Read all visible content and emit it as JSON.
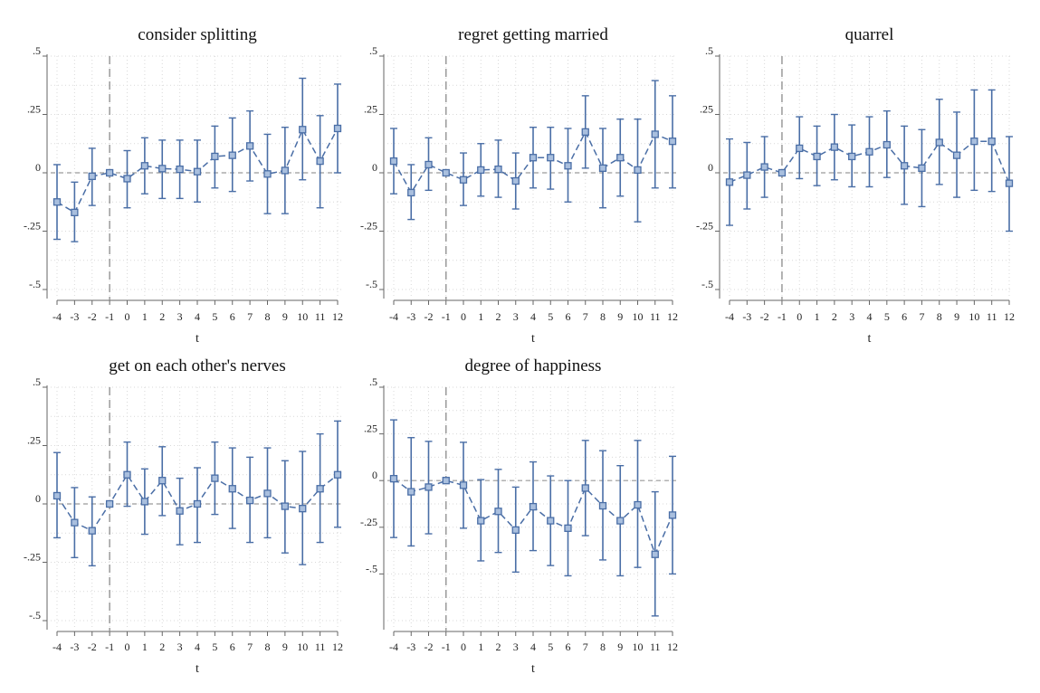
{
  "chart_data": [
    {
      "type": "scatter",
      "title": "consider splitting",
      "xlabel": "t",
      "ylabel": "",
      "x": [
        -4,
        -3,
        -2,
        -1,
        0,
        1,
        2,
        3,
        4,
        5,
        6,
        7,
        8,
        9,
        10,
        11,
        12
      ],
      "y": [
        -0.125,
        -0.17,
        -0.015,
        0,
        -0.025,
        0.03,
        0.018,
        0.015,
        0.005,
        0.07,
        0.075,
        0.115,
        -0.005,
        0.01,
        0.185,
        0.05,
        0.19
      ],
      "ci_low": [
        -0.285,
        -0.295,
        -0.14,
        0,
        -0.15,
        -0.09,
        -0.11,
        -0.11,
        -0.125,
        -0.065,
        -0.08,
        -0.035,
        -0.175,
        -0.175,
        -0.03,
        -0.15,
        0.0
      ],
      "ci_high": [
        0.035,
        -0.04,
        0.105,
        0,
        0.095,
        0.15,
        0.14,
        0.14,
        0.14,
        0.2,
        0.235,
        0.265,
        0.165,
        0.195,
        0.405,
        0.245,
        0.38
      ],
      "ylim": [
        -0.5,
        0.5
      ],
      "yticks": [
        ".5",
        ".25",
        "0",
        "-.25",
        "-.5"
      ],
      "xticks": [
        "-4",
        "-3",
        "-2",
        "-1",
        "0",
        "1",
        "2",
        "3",
        "4",
        "5",
        "6",
        "7",
        "8",
        "9",
        "10",
        "11",
        "12"
      ],
      "reference_x": -1,
      "reference_y": 0
    },
    {
      "type": "scatter",
      "title": "regret getting married",
      "xlabel": "t",
      "ylabel": "",
      "x": [
        -4,
        -3,
        -2,
        -1,
        0,
        1,
        2,
        3,
        4,
        5,
        6,
        7,
        8,
        9,
        10,
        11,
        12
      ],
      "y": [
        0.05,
        -0.085,
        0.035,
        0,
        -0.03,
        0.012,
        0.015,
        -0.035,
        0.065,
        0.065,
        0.03,
        0.175,
        0.02,
        0.065,
        0.012,
        0.165,
        0.135
      ],
      "ci_low": [
        -0.09,
        -0.2,
        -0.075,
        0,
        -0.14,
        -0.1,
        -0.105,
        -0.155,
        -0.065,
        -0.07,
        -0.125,
        0.02,
        -0.15,
        -0.1,
        -0.21,
        -0.065,
        -0.065
      ],
      "ci_high": [
        0.19,
        0.035,
        0.15,
        0,
        0.085,
        0.125,
        0.14,
        0.085,
        0.195,
        0.195,
        0.19,
        0.33,
        0.19,
        0.23,
        0.23,
        0.395,
        0.33
      ],
      "ylim": [
        -0.5,
        0.5
      ],
      "yticks": [
        ".5",
        ".25",
        "0",
        "-.25",
        "-.5"
      ],
      "xticks": [
        "-4",
        "-3",
        "-2",
        "-1",
        "0",
        "1",
        "2",
        "3",
        "4",
        "5",
        "6",
        "7",
        "8",
        "9",
        "10",
        "11",
        "12"
      ],
      "reference_x": -1,
      "reference_y": 0
    },
    {
      "type": "scatter",
      "title": "quarrel",
      "xlabel": "t",
      "ylabel": "",
      "x": [
        -4,
        -3,
        -2,
        -1,
        0,
        1,
        2,
        3,
        4,
        5,
        6,
        7,
        8,
        9,
        10,
        11,
        12
      ],
      "y": [
        -0.04,
        -0.01,
        0.025,
        0,
        0.105,
        0.07,
        0.11,
        0.07,
        0.09,
        0.12,
        0.03,
        0.02,
        0.13,
        0.075,
        0.135,
        0.135,
        -0.045
      ],
      "ci_low": [
        -0.225,
        -0.155,
        -0.105,
        0,
        -0.025,
        -0.055,
        -0.03,
        -0.06,
        -0.06,
        -0.02,
        -0.135,
        -0.145,
        -0.05,
        -0.105,
        -0.075,
        -0.08,
        -0.25
      ],
      "ci_high": [
        0.145,
        0.13,
        0.155,
        0,
        0.24,
        0.2,
        0.25,
        0.205,
        0.24,
        0.265,
        0.2,
        0.185,
        0.315,
        0.26,
        0.355,
        0.355,
        0.155
      ],
      "ylim": [
        -0.5,
        0.5
      ],
      "yticks": [
        ".5",
        ".25",
        "0",
        "-.25",
        "-.5"
      ],
      "xticks": [
        "-4",
        "-3",
        "-2",
        "-1",
        "0",
        "1",
        "2",
        "3",
        "4",
        "5",
        "6",
        "7",
        "8",
        "9",
        "10",
        "11",
        "12"
      ],
      "reference_x": -1,
      "reference_y": 0
    },
    {
      "type": "scatter",
      "title": "get on each other's nerves",
      "xlabel": "t",
      "ylabel": "",
      "x": [
        -4,
        -3,
        -2,
        -1,
        0,
        1,
        2,
        3,
        4,
        5,
        6,
        7,
        8,
        9,
        10,
        11,
        12
      ],
      "y": [
        0.035,
        -0.08,
        -0.115,
        0,
        0.125,
        0.01,
        0.1,
        -0.03,
        0.0,
        0.11,
        0.065,
        0.015,
        0.045,
        -0.01,
        -0.02,
        0.065,
        0.125
      ],
      "ci_low": [
        -0.145,
        -0.23,
        -0.265,
        0,
        -0.01,
        -0.13,
        -0.05,
        -0.175,
        -0.165,
        -0.045,
        -0.105,
        -0.165,
        -0.145,
        -0.21,
        -0.26,
        -0.165,
        -0.1
      ],
      "ci_high": [
        0.22,
        0.07,
        0.03,
        0,
        0.265,
        0.15,
        0.245,
        0.11,
        0.155,
        0.265,
        0.24,
        0.2,
        0.24,
        0.185,
        0.225,
        0.3,
        0.355
      ],
      "ylim": [
        -0.5,
        0.5
      ],
      "yticks": [
        ".5",
        ".25",
        "0",
        "-.25",
        "-.5"
      ],
      "xticks": [
        "-4",
        "-3",
        "-2",
        "-1",
        "0",
        "1",
        "2",
        "3",
        "4",
        "5",
        "6",
        "7",
        "8",
        "9",
        "10",
        "11",
        "12"
      ],
      "reference_x": -1,
      "reference_y": 0
    },
    {
      "type": "scatter",
      "title": "degree of happiness",
      "xlabel": "t",
      "ylabel": "",
      "x": [
        -4,
        -3,
        -2,
        -1,
        0,
        1,
        2,
        3,
        4,
        5,
        6,
        7,
        8,
        9,
        10,
        11,
        12
      ],
      "y": [
        0.01,
        -0.06,
        -0.035,
        0,
        -0.025,
        -0.215,
        -0.165,
        -0.265,
        -0.14,
        -0.215,
        -0.255,
        -0.04,
        -0.135,
        -0.215,
        -0.13,
        -0.395,
        -0.185
      ],
      "ci_low": [
        -0.305,
        -0.35,
        -0.285,
        0,
        -0.255,
        -0.43,
        -0.385,
        -0.49,
        -0.375,
        -0.455,
        -0.51,
        -0.295,
        -0.425,
        -0.51,
        -0.465,
        -0.725,
        -0.5
      ],
      "ci_high": [
        0.325,
        0.23,
        0.21,
        0,
        0.205,
        0.005,
        0.06,
        -0.035,
        0.1,
        0.025,
        0.0,
        0.215,
        0.16,
        0.08,
        0.215,
        -0.06,
        0.13
      ],
      "ylim": [
        -0.75,
        0.5
      ],
      "yticks": [
        ".5",
        ".25",
        "0",
        "-.25",
        "-.5"
      ],
      "xticks": [
        "-4",
        "-3",
        "-2",
        "-1",
        "0",
        "1",
        "2",
        "3",
        "4",
        "5",
        "6",
        "7",
        "8",
        "9",
        "10",
        "11",
        "12"
      ],
      "reference_x": -1,
      "reference_y": 0
    }
  ],
  "colors": {
    "series": "#4a6ea6",
    "marker_fill": "#a9bfde",
    "reference": "#9a9a9a",
    "grid": "#d9d9d9",
    "axis": "#666666"
  }
}
